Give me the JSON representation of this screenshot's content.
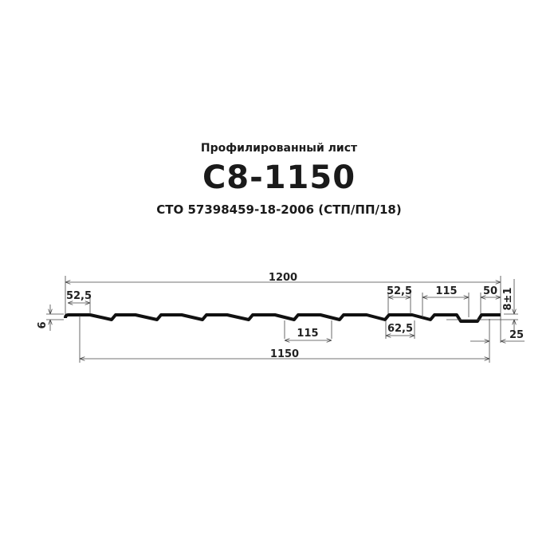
{
  "title": {
    "subtitle": "Профилированный лист",
    "model": "С8-1150",
    "standard": "СТО  57398459-18-2006  (СТП/ПП/18)"
  },
  "dimensions": {
    "total_width": "1200",
    "useful_width": "1150",
    "rib_top_left": "52,5",
    "height_left": "6",
    "pitch_bottom": "115",
    "rib_top_right": "52,5",
    "rib_base": "62,5",
    "pitch_right": "115",
    "edge": "50",
    "height": "8±1",
    "overlap": "25"
  }
}
